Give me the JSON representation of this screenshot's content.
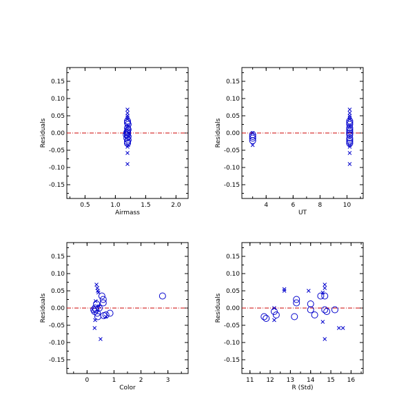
{
  "colors": {
    "marker": "#0000cc",
    "zero_line": "#cc0000",
    "axes": "#000000",
    "background": "#ffffff"
  },
  "markers": {
    "circle": "open circle",
    "x": "cross"
  },
  "chart_data": [
    {
      "type": "scatter",
      "xlabel": "Airmass",
      "ylabel": "Residuals",
      "xlim": [
        0.2,
        2.2
      ],
      "ylim": [
        -0.19,
        0.19
      ],
      "xticks": [
        0.5,
        1.0,
        1.5,
        2.0
      ],
      "xtick_labels": [
        "0.5",
        "1.0",
        "1.5",
        "2.0"
      ],
      "yticks": [
        0.15,
        0.1,
        0.05,
        0.0,
        -0.05,
        -0.1,
        -0.15
      ],
      "ytick_labels": [
        "0.15",
        "0.10",
        "0.05",
        "0.00",
        "-0.05",
        "-0.10",
        "-0.15"
      ],
      "zero_line": 0.0,
      "grid": false,
      "points_circle": [
        [
          1.18,
          -0.005
        ],
        [
          1.19,
          -0.015
        ],
        [
          1.2,
          -0.025
        ],
        [
          1.21,
          -0.01
        ],
        [
          1.2,
          0.0
        ],
        [
          1.2,
          0.005
        ],
        [
          1.21,
          0.01
        ],
        [
          1.2,
          0.015
        ],
        [
          1.21,
          0.025
        ],
        [
          1.2,
          0.03
        ],
        [
          1.2,
          0.035
        ],
        [
          1.21,
          -0.02
        ],
        [
          1.2,
          -0.03
        ],
        [
          1.2,
          -0.005
        ],
        [
          1.19,
          0.002
        ]
      ],
      "points_x": [
        [
          1.2,
          0.068
        ],
        [
          1.2,
          0.058
        ],
        [
          1.2,
          0.05
        ],
        [
          1.2,
          0.045
        ],
        [
          1.2,
          0.04
        ],
        [
          1.21,
          0.02
        ],
        [
          1.2,
          -0.04
        ],
        [
          1.2,
          -0.058
        ],
        [
          1.2,
          -0.09
        ],
        [
          1.21,
          -0.035
        ]
      ]
    },
    {
      "type": "scatter",
      "xlabel": "UT",
      "ylabel": "Residuals",
      "xlim": [
        2.2,
        11.2
      ],
      "ylim": [
        -0.19,
        0.19
      ],
      "xticks": [
        4,
        6,
        8,
        10
      ],
      "xtick_labels": [
        "4",
        "6",
        "8",
        "10"
      ],
      "yticks": [
        0.15,
        0.1,
        0.05,
        0.0,
        -0.05,
        -0.1,
        -0.15
      ],
      "ytick_labels": [
        "0.15",
        "0.10",
        "0.05",
        "0.00",
        "-0.05",
        "-0.10",
        "-0.15"
      ],
      "zero_line": 0.0,
      "grid": false,
      "points_circle": [
        [
          3.0,
          -0.005
        ],
        [
          3.0,
          -0.015
        ],
        [
          3.0,
          -0.022
        ],
        [
          3.0,
          -0.01
        ],
        [
          10.2,
          -0.005
        ],
        [
          10.2,
          -0.015
        ],
        [
          10.2,
          -0.025
        ],
        [
          10.2,
          0.0
        ],
        [
          10.2,
          0.005
        ],
        [
          10.2,
          0.01
        ],
        [
          10.2,
          0.015
        ],
        [
          10.2,
          0.025
        ],
        [
          10.2,
          0.03
        ],
        [
          10.2,
          0.035
        ],
        [
          10.2,
          -0.02
        ],
        [
          10.2,
          -0.03
        ]
      ],
      "points_x": [
        [
          3.0,
          -0.035
        ],
        [
          3.0,
          0.0
        ],
        [
          10.2,
          0.068
        ],
        [
          10.2,
          0.058
        ],
        [
          10.2,
          0.05
        ],
        [
          10.2,
          0.045
        ],
        [
          10.2,
          0.04
        ],
        [
          10.2,
          0.02
        ],
        [
          10.2,
          -0.04
        ],
        [
          10.2,
          -0.058
        ],
        [
          10.2,
          -0.09
        ],
        [
          10.2,
          -0.035
        ]
      ]
    },
    {
      "type": "scatter",
      "xlabel": "Color",
      "ylabel": "Residuals",
      "xlim": [
        -0.75,
        3.75
      ],
      "ylim": [
        -0.19,
        0.19
      ],
      "xticks": [
        0,
        1,
        2,
        3
      ],
      "xtick_labels": [
        "0",
        "1",
        "2",
        "3"
      ],
      "yticks": [
        0.15,
        0.1,
        0.05,
        0.0,
        -0.05,
        -0.1,
        -0.15
      ],
      "ytick_labels": [
        "0.15",
        "0.10",
        "0.05",
        "0.00",
        "-0.05",
        "-0.10",
        "-0.15"
      ],
      "zero_line": 0.0,
      "grid": false,
      "points_circle": [
        [
          0.25,
          -0.005
        ],
        [
          0.28,
          -0.01
        ],
        [
          0.3,
          0.0
        ],
        [
          0.33,
          -0.005
        ],
        [
          0.35,
          0.012
        ],
        [
          0.38,
          -0.015
        ],
        [
          0.4,
          -0.025
        ],
        [
          0.45,
          0.0
        ],
        [
          0.55,
          0.035
        ],
        [
          0.6,
          0.025
        ],
        [
          0.6,
          0.015
        ],
        [
          0.62,
          -0.022
        ],
        [
          0.7,
          -0.02
        ],
        [
          0.85,
          -0.015
        ],
        [
          2.8,
          0.035
        ]
      ],
      "points_x": [
        [
          0.35,
          0.068
        ],
        [
          0.38,
          0.058
        ],
        [
          0.4,
          0.05
        ],
        [
          0.42,
          0.045
        ],
        [
          0.3,
          -0.035
        ],
        [
          0.28,
          -0.058
        ],
        [
          0.5,
          -0.09
        ],
        [
          0.7,
          -0.025
        ],
        [
          0.45,
          0.005
        ],
        [
          0.32,
          0.02
        ]
      ]
    },
    {
      "type": "scatter",
      "xlabel": "R (Std)",
      "ylabel": "Residuals",
      "xlim": [
        10.6,
        16.6
      ],
      "ylim": [
        -0.19,
        0.19
      ],
      "xticks": [
        11,
        12,
        13,
        14,
        15,
        16
      ],
      "xtick_labels": [
        "11",
        "12",
        "13",
        "14",
        "15",
        "16"
      ],
      "yticks": [
        0.15,
        0.1,
        0.05,
        0.0,
        -0.05,
        -0.1,
        -0.15
      ],
      "ytick_labels": [
        "0.15",
        "0.10",
        "0.05",
        "0.00",
        "-0.05",
        "-0.10",
        "-0.15"
      ],
      "zero_line": 0.0,
      "grid": false,
      "points_circle": [
        [
          11.7,
          -0.025
        ],
        [
          11.8,
          -0.03
        ],
        [
          12.2,
          -0.01
        ],
        [
          12.3,
          -0.02
        ],
        [
          13.2,
          -0.025
        ],
        [
          13.3,
          0.025
        ],
        [
          13.3,
          0.015
        ],
        [
          14.0,
          0.012
        ],
        [
          14.2,
          -0.02
        ],
        [
          14.0,
          -0.005
        ],
        [
          14.5,
          0.035
        ],
        [
          14.7,
          -0.005
        ],
        [
          14.8,
          -0.01
        ],
        [
          15.2,
          -0.005
        ],
        [
          14.7,
          0.035
        ]
      ],
      "points_x": [
        [
          12.2,
          -0.035
        ],
        [
          12.7,
          0.05
        ],
        [
          12.7,
          0.055
        ],
        [
          13.9,
          0.05
        ],
        [
          14.7,
          0.068
        ],
        [
          14.7,
          0.058
        ],
        [
          14.6,
          0.045
        ],
        [
          14.7,
          -0.09
        ],
        [
          14.6,
          -0.04
        ],
        [
          15.4,
          -0.058
        ],
        [
          15.6,
          -0.058
        ],
        [
          12.2,
          0.0
        ]
      ]
    }
  ]
}
